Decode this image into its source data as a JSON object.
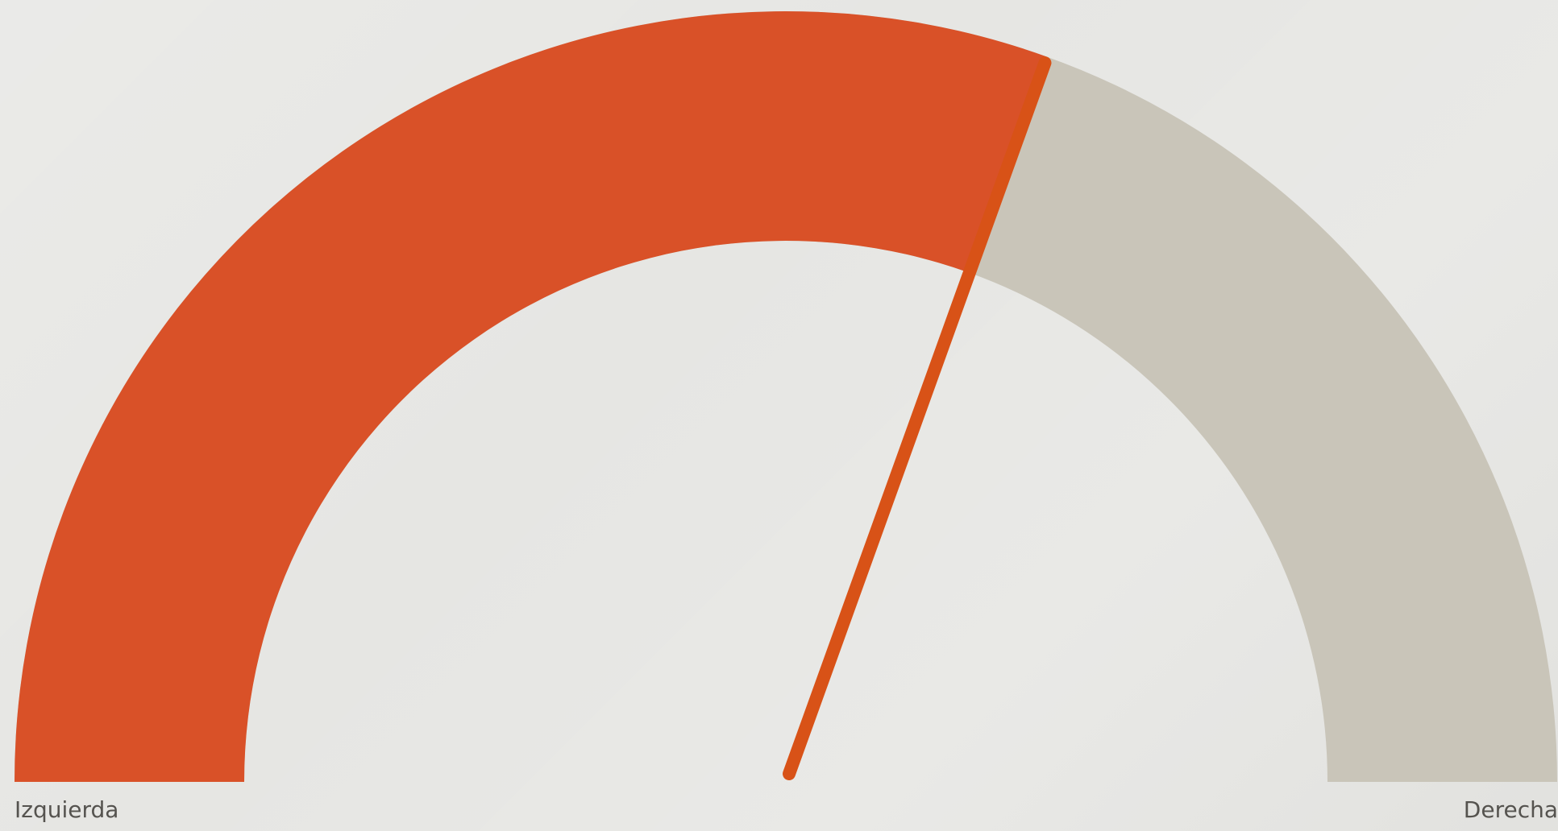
{
  "chart_data": {
    "type": "gauge",
    "value": 0.61,
    "range": [
      0,
      1
    ],
    "min_label": "Izquierda",
    "max_label": "Derecha",
    "colors": {
      "filled": "#d95128",
      "track": "#c9c5b9",
      "needle": "#d85217",
      "background": "#e6e6e3",
      "label_text": "#55534f"
    }
  }
}
